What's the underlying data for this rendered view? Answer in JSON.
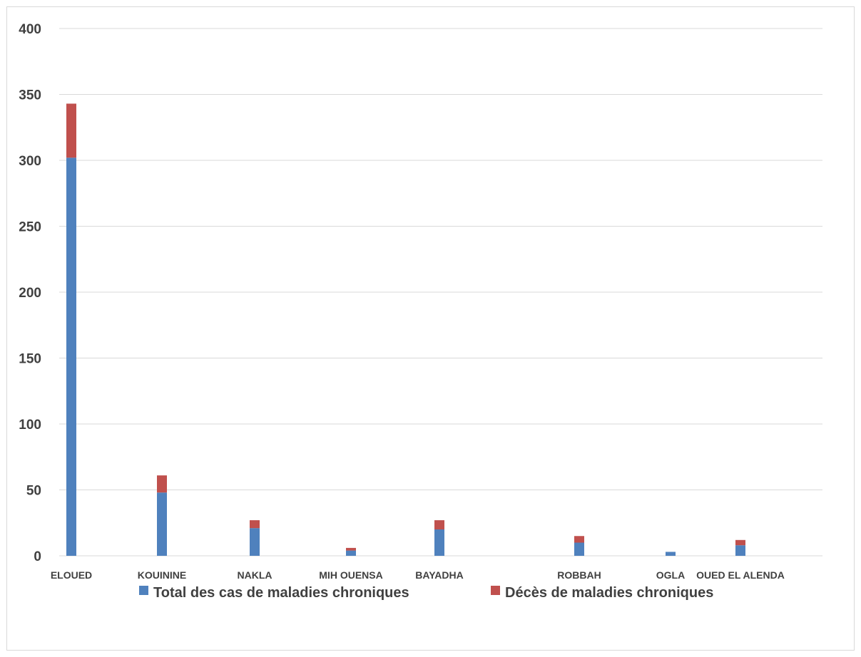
{
  "chart_data": {
    "type": "bar",
    "stacked": true,
    "categories": [
      "ELOUED",
      "KOUININE",
      "NAKLA",
      "MIH OUENSA",
      "BAYADHA",
      "ROBBAH",
      "OGLA",
      "OUED EL ALENDA"
    ],
    "series": [
      {
        "name": "Total des cas de maladies chroniques",
        "color": "#4f81bd",
        "values": [
          302,
          48,
          21,
          4,
          20,
          10,
          3,
          8
        ]
      },
      {
        "name": "Décès de maladies chroniques",
        "color": "#c0504d",
        "values": [
          41,
          13,
          6,
          2,
          7,
          5,
          0,
          4
        ]
      }
    ],
    "ylim": [
      0,
      400
    ],
    "yticks": [
      "0",
      "50",
      "100",
      "150",
      "200",
      "250",
      "300",
      "350",
      "400"
    ],
    "grid": true,
    "legend_position": "bottom",
    "title": "",
    "xlabel": "",
    "ylabel": ""
  }
}
